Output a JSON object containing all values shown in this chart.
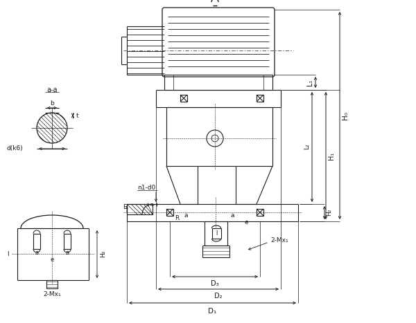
{
  "bg_color": "#ffffff",
  "line_color": "#1a1a1a",
  "fig_width": 6.0,
  "fig_height": 4.67,
  "dpi": 100,
  "labels": {
    "a_a": "a-a",
    "b": "b",
    "t": "t",
    "d_k6": "d(k6)",
    "n1_d0": "n1-d0",
    "E": "E",
    "R": "R",
    "a": "a",
    "e": "e",
    "l": "l",
    "H2_left": "H₂",
    "two_Mx1_left": "2-Mx₁",
    "two_Mx1_right": "2-Mx₁",
    "D3": "D₃",
    "D2": "D₂",
    "D1": "D₁",
    "L1": "L₁",
    "L2": "L₂",
    "H0": "H₀",
    "H1": "H₁",
    "H2_right": "H₂"
  }
}
